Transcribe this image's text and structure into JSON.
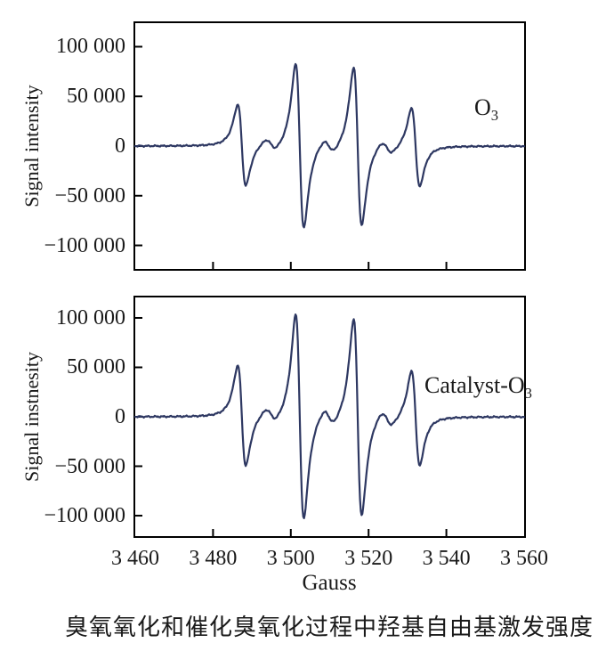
{
  "caption": "臭氧氧化和催化臭氧化过程中羟基自由基激发强度",
  "colors": {
    "curve": "#2e3862",
    "axis": "#000000",
    "text": "#1a1a1a",
    "background": "#ffffff"
  },
  "chart_data": [
    {
      "type": "line",
      "series": "O3",
      "annotation": {
        "text": "O",
        "subscript": "3"
      },
      "ylabel": "Signal intensity",
      "xlim": [
        3460,
        3560
      ],
      "ylim": [
        -125500,
        125500
      ],
      "grid": false,
      "legend_position": "inside-right",
      "x_tick_marks": [
        3480,
        3500,
        3520,
        3540
      ],
      "x_tick_labels": [],
      "y_ticks": [
        {
          "value": 100000,
          "label": "100 000"
        },
        {
          "value": 50000,
          "label": "50 000"
        },
        {
          "value": 0,
          "label": "0"
        },
        {
          "value": -50000,
          "label": "−50 000"
        },
        {
          "value": -100000,
          "label": "−100 000"
        }
      ],
      "epr_lines": [
        {
          "center": 3487.4,
          "width": 1.8,
          "amplitude": 41000
        },
        {
          "center": 3502.3,
          "width": 1.8,
          "amplitude": 83000
        },
        {
          "center": 3517.2,
          "width": 1.8,
          "amplitude": 80000
        },
        {
          "center": 3532.1,
          "width": 1.8,
          "amplitude": 39500
        }
      ],
      "satellite_lines": [
        {
          "center": 3494.9,
          "width": 2.4,
          "amplitude": 6000
        },
        {
          "center": 3509.8,
          "width": 2.4,
          "amplitude": 7000
        },
        {
          "center": 3524.7,
          "width": 2.4,
          "amplitude": 6500
        }
      ],
      "noise_amplitude": 900,
      "peaks_approx": [
        {
          "center_gauss": 3487.4,
          "max": 41000,
          "min": -39500
        },
        {
          "center_gauss": 3502.3,
          "max": 85000,
          "min": -78000
        },
        {
          "center_gauss": 3517.2,
          "max": 83000,
          "min": -76000
        },
        {
          "center_gauss": 3532.1,
          "max": 40000,
          "min": -38500
        }
      ]
    },
    {
      "type": "line",
      "series": "Catalyst-O3",
      "annotation": {
        "text": "Catalyst-O",
        "subscript": "3"
      },
      "ylabel": "Signal instnesity",
      "xlabel": "Gauss",
      "xlim": [
        3460,
        3560
      ],
      "ylim": [
        -122500,
        122500
      ],
      "grid": false,
      "legend_position": "inside-right",
      "x_tick_marks": [
        3480,
        3500,
        3520,
        3540
      ],
      "x_tick_labels": [
        {
          "value": 3460,
          "label": "3 460"
        },
        {
          "value": 3480,
          "label": "3 480"
        },
        {
          "value": 3500,
          "label": "3 500"
        },
        {
          "value": 3520,
          "label": "3 520"
        },
        {
          "value": 3540,
          "label": "3 540"
        },
        {
          "value": 3560,
          "label": "3 560"
        }
      ],
      "y_ticks": [
        {
          "value": 100000,
          "label": "100 000"
        },
        {
          "value": 50000,
          "label": "50 000"
        },
        {
          "value": 0,
          "label": "0"
        },
        {
          "value": -50000,
          "label": "−50 000"
        },
        {
          "value": -100000,
          "label": "−100 000"
        }
      ],
      "epr_lines": [
        {
          "center": 3487.4,
          "width": 1.8,
          "amplitude": 51000
        },
        {
          "center": 3502.3,
          "width": 1.8,
          "amplitude": 104000
        },
        {
          "center": 3517.2,
          "width": 1.8,
          "amplitude": 100000
        },
        {
          "center": 3532.1,
          "width": 1.8,
          "amplitude": 48000
        }
      ],
      "satellite_lines": [
        {
          "center": 3494.9,
          "width": 2.4,
          "amplitude": 7000
        },
        {
          "center": 3509.8,
          "width": 2.4,
          "amplitude": 8500
        },
        {
          "center": 3524.7,
          "width": 2.4,
          "amplitude": 8000
        }
      ],
      "noise_amplitude": 1000,
      "peaks_approx": [
        {
          "center_gauss": 3487.4,
          "max": 51500,
          "min": -50500
        },
        {
          "center_gauss": 3502.3,
          "max": 108000,
          "min": -100000
        },
        {
          "center_gauss": 3517.2,
          "max": 102000,
          "min": -96500
        },
        {
          "center_gauss": 3532.1,
          "max": 49500,
          "min": -47000
        }
      ]
    }
  ]
}
